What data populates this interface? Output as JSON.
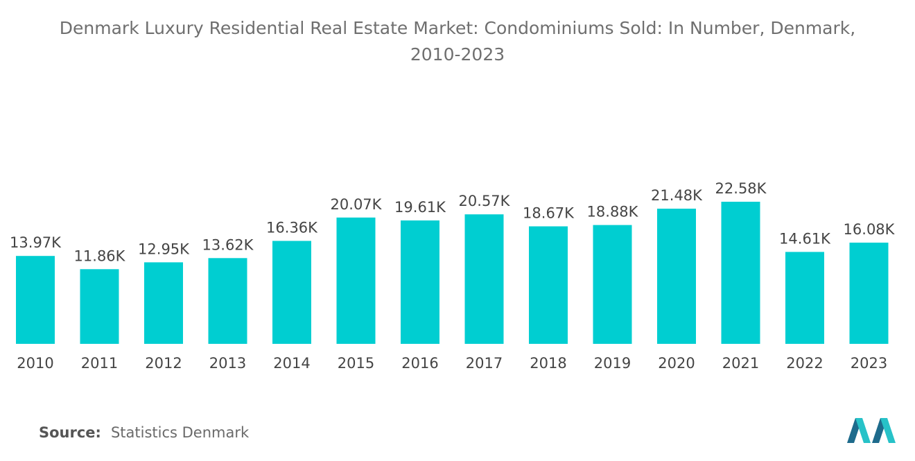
{
  "title_line1": "Denmark Luxury Residential Real Estate Market: Condominiums Sold: In Number, Denmark,",
  "title_line2": "2010-2023",
  "source_label": "Source:",
  "source_value": "Statistics Denmark",
  "colors": {
    "bar": "#00ced1",
    "text": "#444444",
    "title": "#6f6f6f",
    "logo_dark": "#1e6b8c",
    "logo_light": "#27c2c8"
  },
  "chart_data": {
    "type": "bar",
    "title": "Denmark Luxury Residential Real Estate Market: Condominiums Sold: In Number, Denmark, 2010-2023",
    "categories": [
      "2010",
      "2011",
      "2012",
      "2013",
      "2014",
      "2015",
      "2016",
      "2017",
      "2018",
      "2019",
      "2020",
      "2021",
      "2022",
      "2023"
    ],
    "values": [
      13.97,
      11.86,
      12.95,
      13.62,
      16.36,
      20.07,
      19.61,
      20.57,
      18.67,
      18.88,
      21.48,
      22.58,
      14.61,
      16.08
    ],
    "value_labels": [
      "13.97K",
      "11.86K",
      "12.95K",
      "13.62K",
      "16.36K",
      "20.07K",
      "19.61K",
      "20.57K",
      "18.67K",
      "18.88K",
      "21.48K",
      "22.58K",
      "14.61K",
      "16.08K"
    ],
    "unit": "thousand",
    "xlabel": "",
    "ylabel": "",
    "ylim": [
      0,
      22.58
    ],
    "grid": false,
    "legend": "none"
  }
}
